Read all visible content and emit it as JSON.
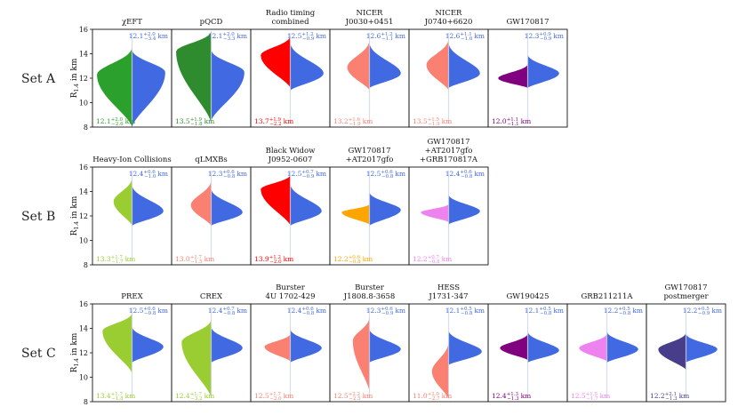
{
  "figure": {
    "ylabel": "R_{1.4} in km",
    "unit": "km",
    "colors": {
      "reference": "#4169e1",
      "divider": "#cfd5e6"
    }
  },
  "chart_data": [
    {
      "type": "violin",
      "set": "Set A",
      "ylim": [
        8,
        16
      ],
      "yticks": [
        8,
        10,
        12,
        14,
        16
      ],
      "panels": [
        {
          "title": [
            "χEFT"
          ],
          "color": "#2ca02c",
          "left": {
            "median": 12.1,
            "plus": "2.0",
            "minus": "2.6",
            "label": "12.1",
            "lo": 8.0,
            "hi": 14.6,
            "peak": 12.3,
            "width": 0.95
          },
          "right": {
            "median": 12.1,
            "plus": "2.0",
            "minus": "3.4",
            "label": "12.1",
            "lo": 8.0,
            "hi": 14.4,
            "peak": 12.5,
            "width": 0.9
          }
        },
        {
          "title": [
            "pQCD"
          ],
          "color": "#2e8b2e",
          "left": {
            "median": 13.5,
            "plus": "1.9",
            "minus": "1.8",
            "label": "13.5",
            "lo": 8.3,
            "hi": 15.9,
            "peak": 14.2,
            "width": 0.95
          },
          "right": {
            "median": 12.1,
            "plus": "2.0",
            "minus": "3.3",
            "label": "12.1",
            "lo": 8.5,
            "hi": 14.4,
            "peak": 12.5,
            "width": 0.9
          }
        },
        {
          "title": [
            "Radio timing",
            "combined"
          ],
          "color": "#ff0000",
          "left": {
            "median": 13.7,
            "plus": "1.9",
            "minus": "2.2",
            "label": "13.7",
            "lo": 11.2,
            "hi": 15.5,
            "peak": 13.9,
            "width": 0.8
          },
          "right": {
            "median": 12.5,
            "plus": "1.2",
            "minus": "0.9",
            "label": "12.5",
            "lo": 11.0,
            "hi": 15.0,
            "peak": 12.4,
            "width": 0.9
          }
        },
        {
          "title": [
            "NICER",
            "J0030+0451"
          ],
          "color": "#fa8072",
          "left": {
            "median": 13.2,
            "plus": "1.6",
            "minus": "1.9",
            "label": "13.2",
            "lo": 11.0,
            "hi": 15.2,
            "peak": 12.9,
            "width": 0.6
          },
          "right": {
            "median": 12.6,
            "plus": "1.2",
            "minus": "1.1",
            "label": "12.6",
            "lo": 11.2,
            "hi": 15.0,
            "peak": 12.4,
            "width": 0.85
          }
        },
        {
          "title": [
            "NICER",
            "J0740+6620"
          ],
          "color": "#fa8072",
          "left": {
            "median": 13.5,
            "plus": "1.5",
            "minus": "1.9",
            "label": "13.5",
            "lo": 11.0,
            "hi": 15.3,
            "peak": 13.1,
            "width": 0.6
          },
          "right": {
            "median": 12.6,
            "plus": "1.1",
            "minus": "1.0",
            "label": "12.6",
            "lo": 11.2,
            "hi": 15.0,
            "peak": 12.4,
            "width": 0.85
          }
        },
        {
          "title": [
            "GW170817"
          ],
          "color": "#800080",
          "left": {
            "median": 12.0,
            "plus": "1.1",
            "minus": "1.1",
            "label": "12.0",
            "lo": 11.2,
            "hi": 13.2,
            "peak": 12.0,
            "width": 0.8
          },
          "right": {
            "median": 12.3,
            "plus": "0.9",
            "minus": "0.9",
            "label": "12.3",
            "lo": 11.2,
            "hi": 14.0,
            "peak": 12.4,
            "width": 0.85
          }
        }
      ]
    },
    {
      "type": "violin",
      "set": "Set B",
      "ylim": [
        8,
        16
      ],
      "yticks": [
        8,
        10,
        12,
        14,
        16
      ],
      "panels": [
        {
          "title": [
            "Heavy-Ion Collisions"
          ],
          "color": "#9acd32",
          "left": {
            "median": 13.3,
            "plus": "1.7",
            "minus": "1.7",
            "label": "13.3",
            "lo": 11.2,
            "hi": 15.2,
            "peak": 13.2,
            "width": 0.5
          },
          "right": {
            "median": 12.4,
            "plus": "0.6",
            "minus": "1.0",
            "label": "12.4",
            "lo": 11.2,
            "hi": 14.6,
            "peak": 12.4,
            "width": 0.85
          }
        },
        {
          "title": [
            "qLMXBs"
          ],
          "color": "#fa8072",
          "left": {
            "median": 13.0,
            "plus": "1.7",
            "minus": "1.5",
            "label": "13.0",
            "lo": 11.2,
            "hi": 15.0,
            "peak": 12.9,
            "width": 0.55
          },
          "right": {
            "median": 12.3,
            "plus": "0.6",
            "minus": "0.8",
            "label": "12.3",
            "lo": 11.2,
            "hi": 14.3,
            "peak": 12.3,
            "width": 0.85
          }
        },
        {
          "title": [
            "Black Widow",
            "J0952-0607"
          ],
          "color": "#ff0000",
          "left": {
            "median": 13.9,
            "plus": "1.2",
            "minus": "2.0",
            "label": "13.9",
            "lo": 11.2,
            "hi": 15.4,
            "peak": 14.2,
            "width": 0.8
          },
          "right": {
            "median": 12.5,
            "plus": "0.7",
            "minus": "0.9",
            "label": "12.5",
            "lo": 11.2,
            "hi": 14.7,
            "peak": 12.4,
            "width": 0.85
          }
        },
        {
          "title": [
            "GW170817",
            "+AT2017gfo"
          ],
          "color": "#ffa500",
          "left": {
            "median": 12.2,
            "plus": "0.6",
            "minus": "0.8",
            "label": "12.2",
            "lo": 11.3,
            "hi": 13.0,
            "peak": 12.3,
            "width": 0.75
          },
          "right": {
            "median": 12.5,
            "plus": "0.6",
            "minus": "0.8",
            "label": "12.5",
            "lo": 11.2,
            "hi": 14.0,
            "peak": 12.5,
            "width": 0.85
          }
        },
        {
          "title": [
            "GW170817",
            "+AT2017gfo",
            "+GRB170817A"
          ],
          "color": "#ee82ee",
          "left": {
            "median": 12.2,
            "plus": "0.7",
            "minus": "0.8",
            "label": "12.2",
            "lo": 11.5,
            "hi": 13.0,
            "peak": 12.3,
            "width": 0.75
          },
          "right": {
            "median": 12.4,
            "plus": "0.6",
            "minus": "0.8",
            "label": "12.4",
            "lo": 11.3,
            "hi": 13.8,
            "peak": 12.4,
            "width": 0.85
          }
        }
      ]
    },
    {
      "type": "violin",
      "set": "Set C",
      "ylim": [
        8,
        16
      ],
      "yticks": [
        8,
        10,
        12,
        14,
        16
      ],
      "panels": [
        {
          "title": [
            "PREX"
          ],
          "color": "#9acd32",
          "left": {
            "median": 13.4,
            "plus": "1.7",
            "minus": "1.8",
            "label": "13.4",
            "lo": 10.3,
            "hi": 15.3,
            "peak": 13.8,
            "width": 0.8
          },
          "right": {
            "median": 12.5,
            "plus": "0.6",
            "minus": "0.8",
            "label": "12.5",
            "lo": 11.2,
            "hi": 14.2,
            "peak": 12.5,
            "width": 0.85
          }
        },
        {
          "title": [
            "CREX"
          ],
          "color": "#9acd32",
          "left": {
            "median": 12.4,
            "plus": "1.7",
            "minus": "3.2",
            "label": "12.4",
            "lo": 8.3,
            "hi": 14.8,
            "peak": 12.9,
            "width": 0.8
          },
          "right": {
            "median": 12.4,
            "plus": "0.7",
            "minus": "0.8",
            "label": "12.4",
            "lo": 11.2,
            "hi": 14.2,
            "peak": 12.4,
            "width": 0.85
          }
        },
        {
          "title": [
            "Burster",
            "4U 1702-429"
          ],
          "color": "#fa8072",
          "left": {
            "median": 12.5,
            "plus": "1.7",
            "minus": "2.0",
            "label": "12.5",
            "lo": 11.3,
            "hi": 13.6,
            "peak": 12.5,
            "width": 0.7
          },
          "right": {
            "median": 12.4,
            "plus": "0.6",
            "minus": "0.8",
            "label": "12.4",
            "lo": 11.2,
            "hi": 14.0,
            "peak": 12.4,
            "width": 0.85
          }
        },
        {
          "title": [
            "Burster",
            "J1808.8-3658"
          ],
          "color": "#fa8072",
          "left": {
            "median": 12.5,
            "plus": "2.2",
            "minus": "2.5",
            "label": "12.5",
            "lo": 8.8,
            "hi": 15.0,
            "peak": 13.0,
            "width": 0.45
          },
          "right": {
            "median": 12.3,
            "plus": "0.6",
            "minus": "0.9",
            "label": "12.3",
            "lo": 11.2,
            "hi": 14.0,
            "peak": 12.3,
            "width": 0.85
          }
        },
        {
          "title": [
            "HESS",
            "J1731-347"
          ],
          "color": "#fa8072",
          "left": {
            "median": 11.0,
            "plus": "2.0",
            "minus": "2.7",
            "label": "11.0",
            "lo": 8.2,
            "hi": 13.0,
            "peak": 10.5,
            "width": 0.45
          },
          "right": {
            "median": 12.1,
            "plus": "0.5",
            "minus": "0.8",
            "label": "12.1",
            "lo": 11.0,
            "hi": 13.9,
            "peak": 12.1,
            "width": 0.9
          }
        },
        {
          "title": [
            "GW190425"
          ],
          "color": "#800080",
          "left": {
            "median": 12.4,
            "plus": "1.3",
            "minus": "1.3",
            "label": "12.4",
            "lo": 11.4,
            "hi": 13.6,
            "peak": 12.4,
            "width": 0.75
          },
          "right": {
            "median": 12.1,
            "plus": "0.5",
            "minus": "0.8",
            "label": "12.1",
            "lo": 11.2,
            "hi": 13.8,
            "peak": 12.2,
            "width": 0.85
          }
        },
        {
          "title": [
            "GRB211211A"
          ],
          "color": "#ee82ee",
          "left": {
            "median": 12.5,
            "plus": "1.5",
            "minus": "1.7",
            "label": "12.5",
            "lo": 11.3,
            "hi": 13.6,
            "peak": 12.4,
            "width": 0.75
          },
          "right": {
            "median": 12.2,
            "plus": "0.5",
            "minus": "0.8",
            "label": "12.2",
            "lo": 11.2,
            "hi": 13.8,
            "peak": 12.3,
            "width": 0.85
          }
        },
        {
          "title": [
            "GW170817",
            "postmerger"
          ],
          "color": "#483d8b",
          "left": {
            "median": 12.2,
            "plus": "2.1",
            "minus": "1.3",
            "label": "12.2",
            "lo": 10.6,
            "hi": 13.7,
            "peak": 12.3,
            "width": 0.75
          },
          "right": {
            "median": 12.2,
            "plus": "0.5",
            "minus": "0.9",
            "label": "12.2",
            "lo": 11.2,
            "hi": 13.6,
            "peak": 12.3,
            "width": 0.85
          }
        }
      ]
    }
  ]
}
